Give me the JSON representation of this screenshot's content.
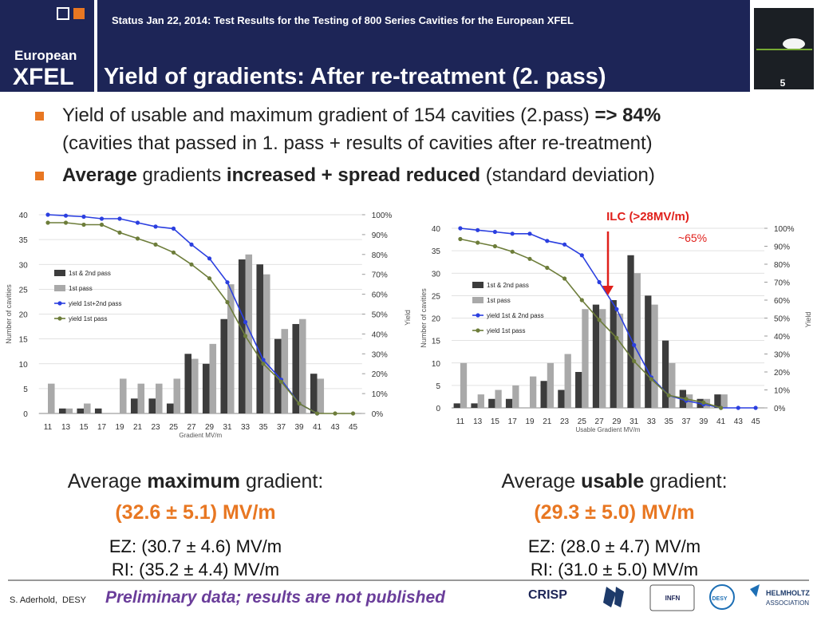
{
  "header": {
    "status": "Status Jan 22, 2014: Test Results for the Testing of 800 Series Cavities for the European XFEL",
    "title": "Yield of gradients: After re-treatment (2. pass)",
    "page": "5",
    "logo": [
      "European",
      "XFEL"
    ]
  },
  "bullets": [
    {
      "lines": [
        [
          {
            "text": "Yield of usable and maximum gradient of 154 cavities (2.pass) ",
            "bold": false
          },
          {
            "text": "=> 84%",
            "bold": true
          }
        ],
        [
          {
            "text": "(cavities that passed in 1. pass + results of cavities after re-treatment)",
            "bold": false
          }
        ]
      ]
    },
    {
      "lines": [
        [
          {
            "text": "Average",
            "bold": true
          },
          {
            "text": " gradients ",
            "bold": false
          },
          {
            "text": "increased + spread reduced",
            "bold": true
          },
          {
            "text": " (standard deviation)",
            "bold": false
          }
        ]
      ]
    }
  ],
  "chart_data": [
    {
      "type": "bar",
      "x_label": "Gradient MV/m",
      "y_label": "Number of cavities",
      "categories": [
        "11",
        "13",
        "15",
        "17",
        "19",
        "21",
        "23",
        "25",
        "27",
        "29",
        "31",
        "33",
        "35",
        "37",
        "39",
        "41",
        "43",
        "45"
      ],
      "series": [
        {
          "name": "1st & 2nd pass",
          "color": "#3c3c3c",
          "values": [
            0,
            1,
            1,
            1,
            0,
            3,
            3,
            2,
            12,
            10,
            19,
            31,
            30,
            15,
            18,
            8,
            0,
            0
          ]
        },
        {
          "name": "1st pass",
          "color": "#a9a9a9",
          "values": [
            6,
            1,
            2,
            0,
            7,
            6,
            6,
            7,
            11,
            14,
            26,
            32,
            28,
            17,
            19,
            7,
            0,
            0
          ]
        },
        {
          "name": "yield 1st+2nd pass",
          "color": "#2b3fe0",
          "type": "line",
          "axis": "y2",
          "values": [
            100,
            99.5,
            99,
            98,
            98,
            96,
            94,
            93,
            85,
            78,
            66,
            46,
            27,
            17,
            5,
            0,
            null,
            null
          ]
        },
        {
          "name": "yield 1st pass",
          "color": "#6d7d3a",
          "type": "line",
          "axis": "y2",
          "values": [
            96,
            96,
            95,
            95,
            91,
            88,
            85,
            81,
            75,
            68,
            56,
            39,
            25,
            16,
            5,
            0,
            0,
            0
          ]
        }
      ],
      "ylim": [
        0,
        40
      ],
      "yticks": [
        0,
        5,
        10,
        15,
        20,
        25,
        30,
        35,
        40
      ],
      "y2lim": [
        0,
        100
      ],
      "y2ticks": [
        {
          "value": 0,
          "label": "0%"
        },
        {
          "value": 10,
          "label": "10%"
        },
        {
          "value": 20,
          "label": "20%"
        },
        {
          "value": 30,
          "label": "30%"
        },
        {
          "value": 40,
          "label": "40%"
        },
        {
          "value": 50,
          "label": "50%"
        },
        {
          "value": 60,
          "label": "60%"
        },
        {
          "value": 70,
          "label": "70%"
        },
        {
          "value": 80,
          "label": "80%"
        },
        {
          "value": 90,
          "label": "90%"
        },
        {
          "value": 100,
          "label": "100%"
        }
      ],
      "grid": true
    },
    {
      "type": "bar",
      "x_label": "Usable Gradient MV/m",
      "y_label": "Number of cavities",
      "y2_label": "Yield",
      "categories": [
        "11",
        "13",
        "15",
        "17",
        "19",
        "21",
        "23",
        "25",
        "27",
        "29",
        "31",
        "33",
        "35",
        "37",
        "39",
        "41",
        "43",
        "45"
      ],
      "series": [
        {
          "name": "1st & 2nd pass",
          "color": "#3c3c3c",
          "values": [
            1,
            1,
            2,
            2,
            0,
            6,
            4,
            8,
            23,
            24,
            34,
            25,
            15,
            4,
            2,
            3,
            0,
            0
          ]
        },
        {
          "name": "1st pass",
          "color": "#a9a9a9",
          "values": [
            10,
            3,
            4,
            5,
            7,
            10,
            12,
            22,
            22,
            21,
            30,
            23,
            10,
            3,
            2,
            3,
            0,
            0
          ]
        },
        {
          "name": "yield 1st & 2nd pass",
          "color": "#2b3fe0",
          "type": "line",
          "axis": "y2",
          "values": [
            100,
            99,
            98,
            97,
            97,
            93,
            91,
            85,
            70,
            55,
            35,
            17,
            7,
            4,
            2,
            0,
            0,
            0
          ]
        },
        {
          "name": "yield 1st pass",
          "color": "#6d7d3a",
          "type": "line",
          "axis": "y2",
          "values": [
            94,
            92,
            90,
            87,
            83,
            78,
            72,
            60,
            49,
            39,
            26,
            16,
            7,
            5,
            3,
            0,
            null,
            null
          ]
        }
      ],
      "ylim": [
        0,
        40
      ],
      "yticks": [
        0,
        5,
        10,
        15,
        20,
        25,
        30,
        35,
        40
      ],
      "y2lim": [
        0,
        100
      ],
      "y2ticks": [
        {
          "value": 0,
          "label": "0%"
        },
        {
          "value": 10,
          "label": "10%"
        },
        {
          "value": 20,
          "label": "20%"
        },
        {
          "value": 30,
          "label": "30%"
        },
        {
          "value": 40,
          "label": "40%"
        },
        {
          "value": 50,
          "label": "50%"
        },
        {
          "value": 60,
          "label": "60%"
        },
        {
          "value": 70,
          "label": "70%"
        },
        {
          "value": 80,
          "label": "80%"
        },
        {
          "value": 90,
          "label": "90%"
        },
        {
          "value": 100,
          "label": "100%"
        }
      ],
      "grid": true,
      "annotations": [
        {
          "text": "ILC (>28MV/m)",
          "color": "#e0201b"
        },
        {
          "text": "~65%",
          "color": "#e0201b"
        },
        {
          "text": "Yield",
          "color": "#555555"
        }
      ]
    }
  ],
  "summaries": [
    {
      "heading": [
        {
          "text": "Average ",
          "bold": false
        },
        {
          "text": "maximum",
          "bold": true
        },
        {
          "text": " gradient:",
          "bold": false
        }
      ],
      "value": "(32.6 ± 5.1) MV/m",
      "details": [
        "EZ: (30.7 ± 4.6) MV/m",
        "RI: (35.2 ± 4.4) MV/m"
      ]
    },
    {
      "heading": [
        {
          "text": "Average ",
          "bold": false
        },
        {
          "text": "usable",
          "bold": true
        },
        {
          "text": " gradient:",
          "bold": false
        }
      ],
      "value": "(29.3 ± 5.0) MV/m",
      "details": [
        "EZ: (28.0 ± 4.7) MV/m",
        "RI: (31.0 ± 5.0) MV/m"
      ]
    }
  ],
  "footer": {
    "author": "S. Aderhold,  DESY",
    "note": "Preliminary data; results are not published",
    "logos": [
      "CRISP",
      "INFN",
      "DESY",
      "HELMHOLTZ",
      "ASSOCIATION"
    ]
  }
}
